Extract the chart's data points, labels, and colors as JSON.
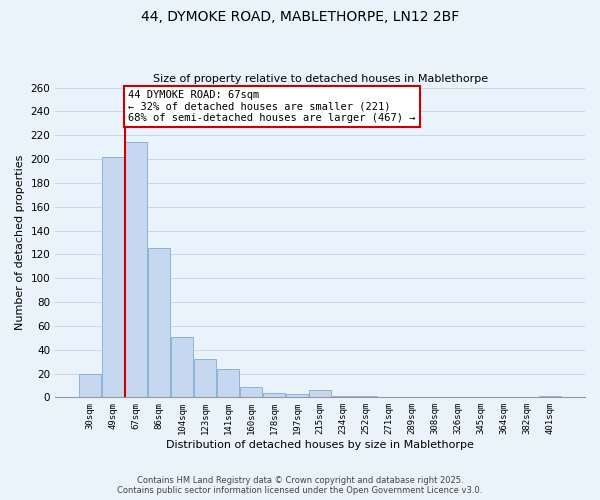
{
  "title_line1": "44, DYMOKE ROAD, MABLETHORPE, LN12 2BF",
  "title_line2": "Size of property relative to detached houses in Mablethorpe",
  "xlabel": "Distribution of detached houses by size in Mablethorpe",
  "ylabel": "Number of detached properties",
  "categories": [
    "30sqm",
    "49sqm",
    "67sqm",
    "86sqm",
    "104sqm",
    "123sqm",
    "141sqm",
    "160sqm",
    "178sqm",
    "197sqm",
    "215sqm",
    "234sqm",
    "252sqm",
    "271sqm",
    "289sqm",
    "308sqm",
    "326sqm",
    "345sqm",
    "364sqm",
    "382sqm",
    "401sqm"
  ],
  "values": [
    20,
    202,
    214,
    125,
    51,
    32,
    24,
    9,
    4,
    3,
    6,
    1,
    1,
    0,
    0,
    0,
    0,
    0,
    0,
    0,
    1
  ],
  "bar_color": "#c5d8f0",
  "bar_edge_color": "#8ab4d8",
  "red_line_index": 2,
  "annotation_text": "44 DYMOKE ROAD: 67sqm\n← 32% of detached houses are smaller (221)\n68% of semi-detached houses are larger (467) →",
  "annotation_box_color": "#ffffff",
  "annotation_edge_color": "#cc0000",
  "red_line_color": "#cc0000",
  "ylim": [
    0,
    260
  ],
  "yticks": [
    0,
    20,
    40,
    60,
    80,
    100,
    120,
    140,
    160,
    180,
    200,
    220,
    240,
    260
  ],
  "grid_color": "#c8d8e8",
  "background_color": "#eaf2fb",
  "footer_line1": "Contains HM Land Registry data © Crown copyright and database right 2025.",
  "footer_line2": "Contains public sector information licensed under the Open Government Licence v3.0."
}
